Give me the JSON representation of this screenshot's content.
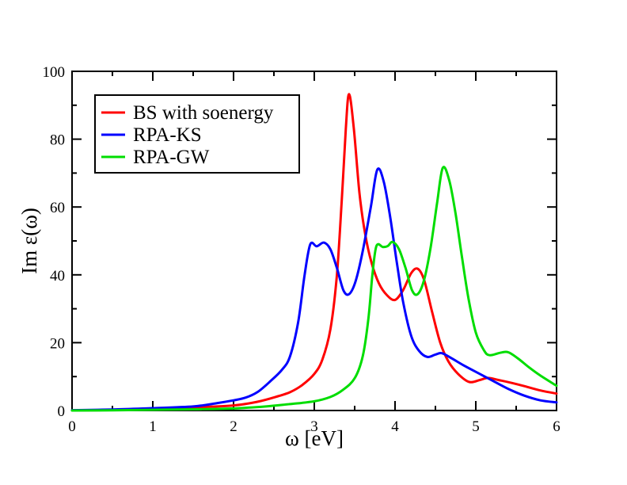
{
  "chart_data": {
    "type": "line",
    "title": "",
    "xlabel": "ω [eV]",
    "ylabel": "Im ε(ω)",
    "xlim": [
      0,
      6
    ],
    "ylim": [
      0,
      100
    ],
    "x_major_ticks": [
      0,
      1,
      2,
      3,
      4,
      5,
      6
    ],
    "x_minor_ticks": [
      0.5,
      1.5,
      2.5,
      3.5,
      4.5,
      5.5
    ],
    "y_major_ticks": [
      0,
      20,
      40,
      60,
      80,
      100
    ],
    "y_minor_ticks": [
      10,
      30,
      50,
      70,
      90
    ],
    "grid": false,
    "legend_position": "top-left",
    "axis_color": "#000000",
    "background_color": "#ffffff",
    "series": [
      {
        "name": "BS with soenergy",
        "color": "#ff0000",
        "points": [
          [
            0,
            0.05
          ],
          [
            0.5,
            0.15
          ],
          [
            1.0,
            0.4
          ],
          [
            1.5,
            0.9
          ],
          [
            2.0,
            1.5
          ],
          [
            2.3,
            2.6
          ],
          [
            2.55,
            4.2
          ],
          [
            2.7,
            5.4
          ],
          [
            2.85,
            7.5
          ],
          [
            3.0,
            10.8
          ],
          [
            3.1,
            15
          ],
          [
            3.2,
            24
          ],
          [
            3.28,
            40
          ],
          [
            3.34,
            62
          ],
          [
            3.39,
            83
          ],
          [
            3.43,
            93.3
          ],
          [
            3.49,
            83
          ],
          [
            3.56,
            64
          ],
          [
            3.63,
            52
          ],
          [
            3.71,
            43.5
          ],
          [
            3.8,
            37.5
          ],
          [
            3.9,
            34
          ],
          [
            4.0,
            32.6
          ],
          [
            4.1,
            35.5
          ],
          [
            4.2,
            40.5
          ],
          [
            4.28,
            41.8
          ],
          [
            4.36,
            38.5
          ],
          [
            4.46,
            29
          ],
          [
            4.56,
            20
          ],
          [
            4.66,
            14.5
          ],
          [
            4.78,
            10.8
          ],
          [
            4.92,
            8.4
          ],
          [
            5.05,
            9.0
          ],
          [
            5.15,
            9.6
          ],
          [
            5.28,
            9.0
          ],
          [
            5.45,
            8.1
          ],
          [
            5.6,
            7.2
          ],
          [
            5.8,
            5.9
          ],
          [
            6.0,
            5.0
          ]
        ]
      },
      {
        "name": "RPA-KS",
        "color": "#0000ff",
        "points": [
          [
            0,
            0.1
          ],
          [
            0.5,
            0.3
          ],
          [
            1.0,
            0.7
          ],
          [
            1.5,
            1.2
          ],
          [
            1.8,
            2.2
          ],
          [
            2.0,
            3.0
          ],
          [
            2.15,
            3.8
          ],
          [
            2.3,
            5.5
          ],
          [
            2.45,
            8.5
          ],
          [
            2.6,
            12
          ],
          [
            2.7,
            16
          ],
          [
            2.8,
            26
          ],
          [
            2.88,
            40
          ],
          [
            2.95,
            49
          ],
          [
            3.03,
            48.4
          ],
          [
            3.12,
            49.5
          ],
          [
            3.2,
            47.5
          ],
          [
            3.28,
            42
          ],
          [
            3.36,
            35.5
          ],
          [
            3.43,
            34.3
          ],
          [
            3.51,
            38
          ],
          [
            3.6,
            47
          ],
          [
            3.7,
            60
          ],
          [
            3.78,
            71
          ],
          [
            3.86,
            67.5
          ],
          [
            3.94,
            57
          ],
          [
            4.02,
            44
          ],
          [
            4.1,
            32
          ],
          [
            4.2,
            22
          ],
          [
            4.3,
            17.5
          ],
          [
            4.4,
            15.8
          ],
          [
            4.5,
            16.5
          ],
          [
            4.58,
            16.9
          ],
          [
            4.7,
            15.4
          ],
          [
            4.85,
            13.3
          ],
          [
            5.0,
            11.4
          ],
          [
            5.2,
            8.9
          ],
          [
            5.4,
            6.4
          ],
          [
            5.6,
            4.4
          ],
          [
            5.8,
            3.0
          ],
          [
            6.0,
            2.4
          ]
        ]
      },
      {
        "name": "RPA-GW",
        "color": "#00dd00",
        "points": [
          [
            0,
            0
          ],
          [
            0.5,
            0.05
          ],
          [
            1.0,
            0.2
          ],
          [
            1.5,
            0.35
          ],
          [
            2.0,
            0.6
          ],
          [
            2.4,
            1.2
          ],
          [
            2.7,
            1.9
          ],
          [
            3.0,
            2.7
          ],
          [
            3.2,
            4.0
          ],
          [
            3.35,
            6.0
          ],
          [
            3.5,
            9.5
          ],
          [
            3.6,
            16
          ],
          [
            3.67,
            27
          ],
          [
            3.72,
            40
          ],
          [
            3.77,
            48.5
          ],
          [
            3.85,
            48.2
          ],
          [
            3.91,
            48.5
          ],
          [
            3.97,
            49.7
          ],
          [
            4.05,
            47.5
          ],
          [
            4.13,
            42
          ],
          [
            4.21,
            35.5
          ],
          [
            4.28,
            34.3
          ],
          [
            4.36,
            38.5
          ],
          [
            4.44,
            48
          ],
          [
            4.52,
            61
          ],
          [
            4.59,
            71.5
          ],
          [
            4.67,
            68
          ],
          [
            4.75,
            58
          ],
          [
            4.83,
            45
          ],
          [
            4.91,
            33
          ],
          [
            5.0,
            23
          ],
          [
            5.1,
            17.8
          ],
          [
            5.17,
            16.3
          ],
          [
            5.3,
            17.0
          ],
          [
            5.4,
            17.2
          ],
          [
            5.52,
            15.4
          ],
          [
            5.66,
            12.7
          ],
          [
            5.8,
            10.3
          ],
          [
            6.0,
            7.3
          ]
        ]
      }
    ]
  },
  "legend": {
    "entries": [
      "BS with soenergy",
      "RPA-KS",
      "RPA-GW"
    ]
  }
}
